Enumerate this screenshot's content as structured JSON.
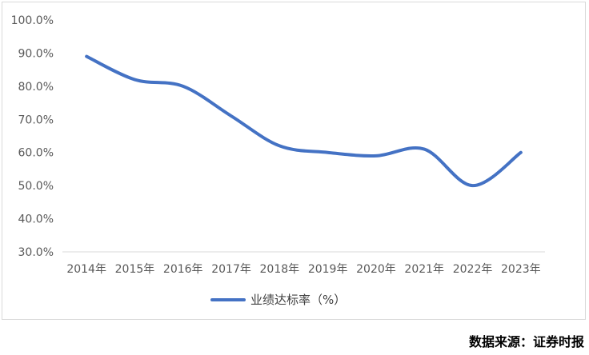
{
  "chart_data": {
    "type": "line",
    "title": "",
    "xlabel": "",
    "ylabel": "",
    "categories": [
      "2014年",
      "2015年",
      "2016年",
      "2017年",
      "2018年",
      "2019年",
      "2020年",
      "2021年",
      "2022年",
      "2023年"
    ],
    "series": [
      {
        "name": "业绩达标率（%）",
        "color": "#4472c4",
        "values": [
          89.0,
          82.0,
          80.0,
          71.0,
          62.0,
          60.0,
          59.0,
          61.0,
          50.0,
          60.0
        ]
      }
    ],
    "ylim": [
      30,
      100
    ],
    "yticks": [
      "100.0%",
      "90.0%",
      "80.0%",
      "70.0%",
      "60.0%",
      "50.0%",
      "40.0%",
      "30.0%"
    ],
    "grid": false,
    "legend": "bottom"
  },
  "source_note": "数据来源：证券时报"
}
